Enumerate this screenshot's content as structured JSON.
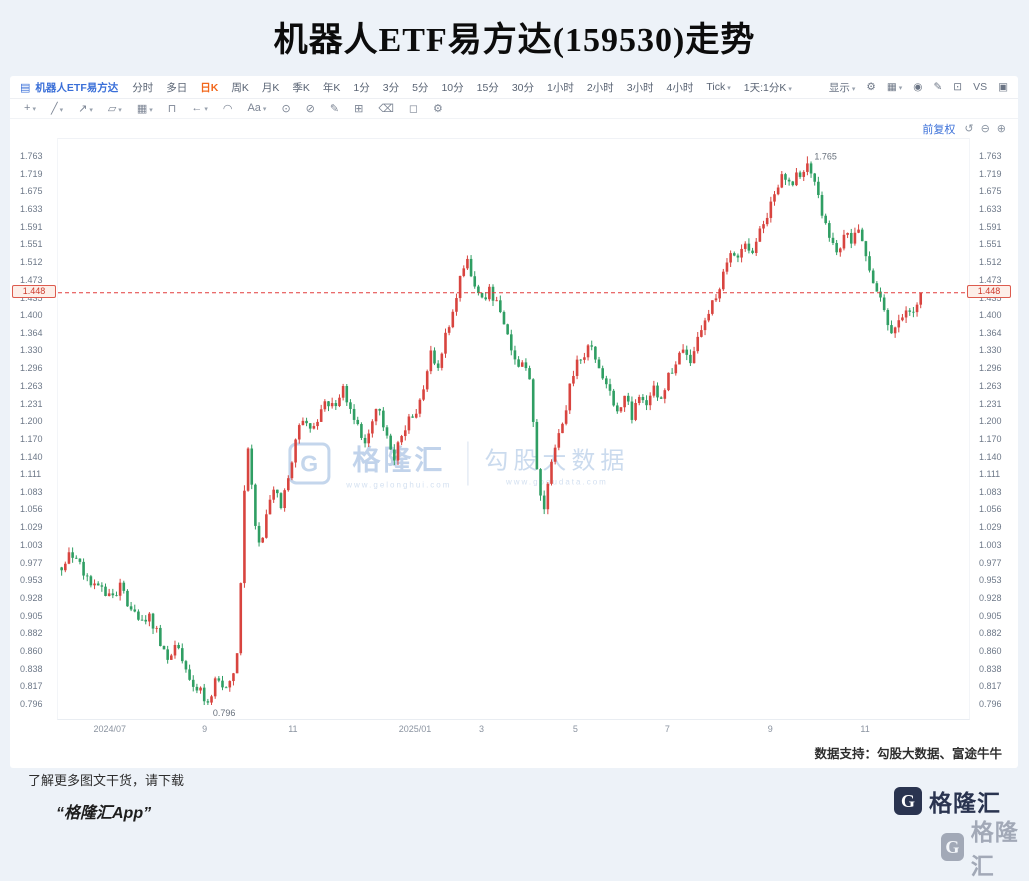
{
  "page": {
    "title": "机器人ETF易方达(159530)走势",
    "support_text": "数据支持：勾股大数据、富途牛牛",
    "footer": {
      "promo_line": "了解更多图文干货，请下载",
      "app_name": "“格隆汇App”",
      "brand": "格隆汇",
      "brand_letter": "G"
    }
  },
  "toolbar": {
    "symbol_icon": "▤",
    "symbol": "机器人ETF易方达",
    "periods": [
      {
        "label": "分时"
      },
      {
        "label": "多日"
      },
      {
        "label": "日K",
        "active": true
      },
      {
        "label": "周K"
      },
      {
        "label": "月K"
      },
      {
        "label": "季K"
      },
      {
        "label": "年K"
      },
      {
        "label": "1分"
      },
      {
        "label": "3分"
      },
      {
        "label": "5分"
      },
      {
        "label": "10分"
      },
      {
        "label": "15分"
      },
      {
        "label": "30分"
      },
      {
        "label": "1小时"
      },
      {
        "label": "2小时"
      },
      {
        "label": "3小时"
      },
      {
        "label": "4小时"
      },
      {
        "label": "Tick",
        "caret": true
      },
      {
        "label": "1天:1分K",
        "caret": true
      }
    ],
    "right_items": [
      {
        "name": "display-menu",
        "label": "显示",
        "caret": true
      },
      {
        "name": "settings-icon",
        "glyph": "⚙"
      },
      {
        "name": "layout-menu-icon",
        "glyph": "▦",
        "caret": true
      },
      {
        "name": "screenshot-icon",
        "glyph": "◉"
      },
      {
        "name": "edit-icon",
        "glyph": "✎"
      },
      {
        "name": "fullscreen-icon",
        "glyph": "⊡"
      },
      {
        "name": "compare-button",
        "label": "VS"
      },
      {
        "name": "window-icon",
        "glyph": "▣"
      }
    ]
  },
  "tools": [
    {
      "name": "crosshair-tool",
      "glyph": "+",
      "caret": true
    },
    {
      "name": "trendline-tool",
      "glyph": "╱",
      "caret": true
    },
    {
      "name": "arrow-line-tool",
      "glyph": "↗",
      "caret": true
    },
    {
      "name": "shape-tool",
      "glyph": "▱",
      "caret": true
    },
    {
      "name": "pattern-tool",
      "glyph": "▦",
      "caret": true
    },
    {
      "name": "bracket-tool",
      "glyph": "⊓"
    },
    {
      "name": "back-arrow-tool",
      "glyph": "←",
      "caret": true
    },
    {
      "name": "curve-tool",
      "glyph": "◠"
    },
    {
      "name": "text-tool",
      "glyph": "Aa",
      "caret": true
    },
    {
      "name": "magnet-tool",
      "glyph": "⊙"
    },
    {
      "name": "lock-tool",
      "glyph": "⊘"
    },
    {
      "name": "pencil-tool",
      "glyph": "✎"
    },
    {
      "name": "printer-tool",
      "glyph": "⊞"
    },
    {
      "name": "eraser-tool",
      "glyph": "⌫"
    },
    {
      "name": "comment-tool",
      "glyph": "◻"
    },
    {
      "name": "chart-settings-tool",
      "glyph": "⚙"
    }
  ],
  "chart": {
    "adjust_label": "前复权",
    "controls": [
      {
        "name": "undo-icon",
        "glyph": "↺"
      },
      {
        "name": "zoom-out-icon",
        "glyph": "⊖"
      },
      {
        "name": "zoom-in-icon",
        "glyph": "⊕"
      }
    ],
    "watermark": {
      "logo_letter": "G",
      "brand": "格隆汇",
      "brand_sub": "www.gelonghui.com",
      "partner": "勾股大数据",
      "partner_sub": "www.gogudata.com"
    }
  },
  "chart_data": {
    "type": "candlestick",
    "title": "机器人ETF易方达(159530)走势",
    "scale": "log",
    "ylim": [
      0.78,
      1.81
    ],
    "y_ticks": [
      1.763,
      1.719,
      1.675,
      1.633,
      1.591,
      1.551,
      1.512,
      1.473,
      1.435,
      1.4,
      1.364,
      1.33,
      1.296,
      1.263,
      1.231,
      1.2,
      1.17,
      1.14,
      1.111,
      1.083,
      1.056,
      1.029,
      1.003,
      0.977,
      0.953,
      0.928,
      0.905,
      0.882,
      0.86,
      0.838,
      0.817,
      0.796
    ],
    "x_ticks": [
      {
        "f": 0.058,
        "label": "2024/07"
      },
      {
        "f": 0.162,
        "label": "9"
      },
      {
        "f": 0.259,
        "label": "11"
      },
      {
        "f": 0.393,
        "label": "2025/01"
      },
      {
        "f": 0.466,
        "label": "3"
      },
      {
        "f": 0.569,
        "label": "5"
      },
      {
        "f": 0.67,
        "label": "7"
      },
      {
        "f": 0.783,
        "label": "9"
      },
      {
        "f": 0.887,
        "label": "11"
      }
    ],
    "current_price": 1.448,
    "period_high": 1.765,
    "period_low": 0.796,
    "high_f": 0.824,
    "low_f": 0.166,
    "candle_count": 236,
    "colors": {
      "up": "#d8443f",
      "down": "#2f9e63",
      "current_line": "#e23b3b",
      "accent_blue": "#3a6fd8",
      "active_period": "#f2681c"
    },
    "close_anchors": [
      [
        0.004,
        0.972
      ],
      [
        0.012,
        0.998
      ],
      [
        0.02,
        0.986
      ],
      [
        0.032,
        0.958
      ],
      [
        0.045,
        0.944
      ],
      [
        0.058,
        0.928
      ],
      [
        0.068,
        0.944
      ],
      [
        0.08,
        0.914
      ],
      [
        0.09,
        0.892
      ],
      [
        0.1,
        0.91
      ],
      [
        0.112,
        0.872
      ],
      [
        0.122,
        0.85
      ],
      [
        0.13,
        0.868
      ],
      [
        0.14,
        0.842
      ],
      [
        0.15,
        0.82
      ],
      [
        0.16,
        0.806
      ],
      [
        0.166,
        0.802
      ],
      [
        0.172,
        0.826
      ],
      [
        0.18,
        0.816
      ],
      [
        0.19,
        0.822
      ],
      [
        0.198,
        0.862
      ],
      [
        0.204,
        1.08
      ],
      [
        0.209,
        1.168
      ],
      [
        0.214,
        1.058
      ],
      [
        0.222,
        1.002
      ],
      [
        0.23,
        1.05
      ],
      [
        0.238,
        1.096
      ],
      [
        0.246,
        1.062
      ],
      [
        0.254,
        1.12
      ],
      [
        0.262,
        1.176
      ],
      [
        0.27,
        1.214
      ],
      [
        0.278,
        1.186
      ],
      [
        0.286,
        1.205
      ],
      [
        0.296,
        1.24
      ],
      [
        0.304,
        1.218
      ],
      [
        0.312,
        1.26
      ],
      [
        0.32,
        1.232
      ],
      [
        0.328,
        1.196
      ],
      [
        0.336,
        1.164
      ],
      [
        0.344,
        1.204
      ],
      [
        0.352,
        1.228
      ],
      [
        0.36,
        1.178
      ],
      [
        0.368,
        1.136
      ],
      [
        0.376,
        1.176
      ],
      [
        0.384,
        1.198
      ],
      [
        0.393,
        1.218
      ],
      [
        0.402,
        1.272
      ],
      [
        0.41,
        1.326
      ],
      [
        0.418,
        1.304
      ],
      [
        0.427,
        1.37
      ],
      [
        0.435,
        1.428
      ],
      [
        0.443,
        1.488
      ],
      [
        0.45,
        1.516
      ],
      [
        0.457,
        1.462
      ],
      [
        0.466,
        1.43
      ],
      [
        0.474,
        1.458
      ],
      [
        0.482,
        1.422
      ],
      [
        0.49,
        1.382
      ],
      [
        0.498,
        1.334
      ],
      [
        0.506,
        1.29
      ],
      [
        0.512,
        1.316
      ],
      [
        0.519,
        1.262
      ],
      [
        0.526,
        1.108
      ],
      [
        0.533,
        1.046
      ],
      [
        0.54,
        1.118
      ],
      [
        0.548,
        1.172
      ],
      [
        0.556,
        1.21
      ],
      [
        0.562,
        1.266
      ],
      [
        0.569,
        1.316
      ],
      [
        0.576,
        1.3
      ],
      [
        0.584,
        1.346
      ],
      [
        0.59,
        1.312
      ],
      [
        0.598,
        1.278
      ],
      [
        0.606,
        1.252
      ],
      [
        0.614,
        1.222
      ],
      [
        0.622,
        1.242
      ],
      [
        0.63,
        1.212
      ],
      [
        0.638,
        1.248
      ],
      [
        0.646,
        1.228
      ],
      [
        0.654,
        1.266
      ],
      [
        0.662,
        1.242
      ],
      [
        0.67,
        1.282
      ],
      [
        0.678,
        1.31
      ],
      [
        0.686,
        1.334
      ],
      [
        0.694,
        1.31
      ],
      [
        0.702,
        1.352
      ],
      [
        0.71,
        1.388
      ],
      [
        0.718,
        1.424
      ],
      [
        0.726,
        1.458
      ],
      [
        0.734,
        1.51
      ],
      [
        0.74,
        1.546
      ],
      [
        0.746,
        1.518
      ],
      [
        0.753,
        1.556
      ],
      [
        0.76,
        1.532
      ],
      [
        0.768,
        1.574
      ],
      [
        0.776,
        1.61
      ],
      [
        0.783,
        1.646
      ],
      [
        0.79,
        1.686
      ],
      [
        0.797,
        1.718
      ],
      [
        0.804,
        1.692
      ],
      [
        0.811,
        1.728
      ],
      [
        0.818,
        1.71
      ],
      [
        0.824,
        1.75
      ],
      [
        0.83,
        1.7
      ],
      [
        0.836,
        1.652
      ],
      [
        0.842,
        1.6
      ],
      [
        0.848,
        1.562
      ],
      [
        0.854,
        1.525
      ],
      [
        0.86,
        1.548
      ],
      [
        0.866,
        1.584
      ],
      [
        0.872,
        1.56
      ],
      [
        0.878,
        1.586
      ],
      [
        0.884,
        1.54
      ],
      [
        0.89,
        1.5
      ],
      [
        0.896,
        1.468
      ],
      [
        0.902,
        1.438
      ],
      [
        0.908,
        1.402
      ],
      [
        0.914,
        1.375
      ],
      [
        0.92,
        1.368
      ],
      [
        0.926,
        1.398
      ],
      [
        0.932,
        1.418
      ],
      [
        0.938,
        1.402
      ],
      [
        0.943,
        1.43
      ],
      [
        0.947,
        1.448
      ]
    ]
  }
}
